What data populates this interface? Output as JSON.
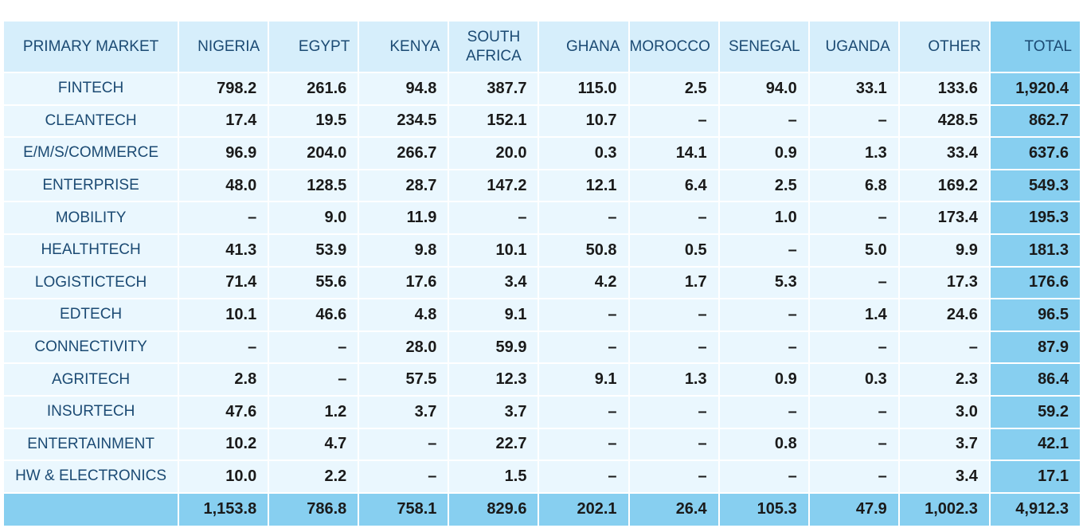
{
  "chart_data": {
    "type": "table",
    "row_header_label": "PRIMARY MARKET",
    "columns": [
      "NIGERIA",
      "EGYPT",
      "KENYA",
      "SOUTH AFRICA",
      "GHANA",
      "MOROCCO",
      "SENEGAL",
      "UGANDA",
      "OTHER",
      "TOTAL"
    ],
    "rows": [
      {
        "label": "FINTECH",
        "values": [
          "798.2",
          "261.6",
          "94.8",
          "387.7",
          "115.0",
          "2.5",
          "94.0",
          "33.1",
          "133.6",
          "1,920.4"
        ]
      },
      {
        "label": "CLEANTECH",
        "values": [
          "17.4",
          "19.5",
          "234.5",
          "152.1",
          "10.7",
          "–",
          "–",
          "–",
          "428.5",
          "862.7"
        ]
      },
      {
        "label": "E/M/S/COMMERCE",
        "values": [
          "96.9",
          "204.0",
          "266.7",
          "20.0",
          "0.3",
          "14.1",
          "0.9",
          "1.3",
          "33.4",
          "637.6"
        ]
      },
      {
        "label": "ENTERPRISE",
        "values": [
          "48.0",
          "128.5",
          "28.7",
          "147.2",
          "12.1",
          "6.4",
          "2.5",
          "6.8",
          "169.2",
          "549.3"
        ]
      },
      {
        "label": "MOBILITY",
        "values": [
          "–",
          "9.0",
          "11.9",
          "–",
          "–",
          "–",
          "1.0",
          "–",
          "173.4",
          "195.3"
        ]
      },
      {
        "label": "HEALTHTECH",
        "values": [
          "41.3",
          "53.9",
          "9.8",
          "10.1",
          "50.8",
          "0.5",
          "–",
          "5.0",
          "9.9",
          "181.3"
        ]
      },
      {
        "label": "LOGISTICTECH",
        "values": [
          "71.4",
          "55.6",
          "17.6",
          "3.4",
          "4.2",
          "1.7",
          "5.3",
          "–",
          "17.3",
          "176.6"
        ]
      },
      {
        "label": "EDTECH",
        "values": [
          "10.1",
          "46.6",
          "4.8",
          "9.1",
          "–",
          "–",
          "–",
          "1.4",
          "24.6",
          "96.5"
        ]
      },
      {
        "label": "CONNECTIVITY",
        "values": [
          "–",
          "–",
          "28.0",
          "59.9",
          "–",
          "–",
          "–",
          "–",
          "–",
          "87.9"
        ]
      },
      {
        "label": "AGRITECH",
        "values": [
          "2.8",
          "–",
          "57.5",
          "12.3",
          "9.1",
          "1.3",
          "0.9",
          "0.3",
          "2.3",
          "86.4"
        ]
      },
      {
        "label": "INSURTECH",
        "values": [
          "47.6",
          "1.2",
          "3.7",
          "3.7",
          "–",
          "–",
          "–",
          "–",
          "3.0",
          "59.2"
        ]
      },
      {
        "label": "ENTERTAINMENT",
        "values": [
          "10.2",
          "4.7",
          "–",
          "22.7",
          "–",
          "–",
          "0.8",
          "–",
          "3.7",
          "42.1"
        ]
      },
      {
        "label": "HW & ELECTRONICS",
        "values": [
          "10.0",
          "2.2",
          "–",
          "1.5",
          "–",
          "–",
          "–",
          "–",
          "3.4",
          "17.1"
        ]
      }
    ],
    "totals": [
      "1,153.8",
      "786.8",
      "758.1",
      "829.6",
      "202.1",
      "26.4",
      "105.3",
      "47.9",
      "1,002.3",
      "4,912.3"
    ],
    "colors": {
      "header_bg": "#d6eefb",
      "cell_bg": "#eaf7fe",
      "total_bg": "#87cff0",
      "label_text": "#1b4a73",
      "value_text": "#1a1a1a"
    }
  }
}
